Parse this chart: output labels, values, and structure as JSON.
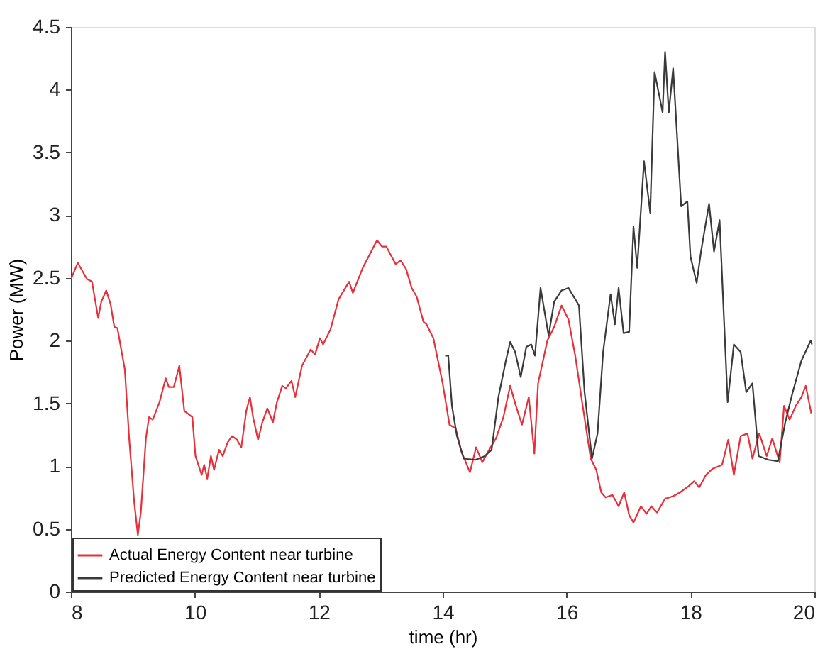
{
  "chart_data": {
    "type": "line",
    "xlabel": "time (hr)",
    "ylabel": "Power (MW)",
    "xlim": [
      8,
      20
    ],
    "xticks": [
      8,
      10,
      12,
      14,
      16,
      18,
      20
    ],
    "ylim": [
      0,
      4.5
    ],
    "yticks": [
      0,
      0.5,
      1,
      1.5,
      2,
      2.5,
      3,
      3.5,
      4,
      4.5
    ],
    "grid": false,
    "legend": "bottom left",
    "marker": "none",
    "line_style": "solid",
    "series": [
      {
        "name": "Actual Energy Content near turbine",
        "color": "#e8303a",
        "x": [
          8.0,
          8.11,
          8.26,
          8.34,
          8.44,
          8.49,
          8.57,
          8.64,
          8.7,
          8.75,
          8.87,
          8.94,
          9.02,
          9.08,
          9.13,
          9.21,
          9.26,
          9.32,
          9.43,
          9.53,
          9.58,
          9.66,
          9.75,
          9.83,
          9.91,
          9.96,
          10.01,
          10.11,
          10.15,
          10.2,
          10.26,
          10.31,
          10.39,
          10.45,
          10.53,
          10.6,
          10.68,
          10.75,
          10.83,
          10.89,
          10.94,
          11.02,
          11.09,
          11.17,
          11.26,
          11.32,
          11.41,
          11.47,
          11.56,
          11.62,
          11.73,
          11.87,
          11.94,
          12.02,
          12.07,
          12.19,
          12.32,
          12.49,
          12.55,
          12.71,
          12.94,
          13.02,
          13.09,
          13.24,
          13.32,
          13.41,
          13.5,
          13.58,
          13.69,
          13.74,
          13.85,
          14.0,
          14.11,
          14.21,
          14.3,
          14.44,
          14.54,
          14.64,
          14.75,
          14.86,
          14.98,
          15.09,
          15.17,
          15.28,
          15.39,
          15.48,
          15.54,
          15.69,
          15.8,
          15.92,
          16.03,
          16.14,
          16.26,
          16.39,
          16.48,
          16.56,
          16.63,
          16.74,
          16.84,
          16.93,
          17.01,
          17.08,
          17.2,
          17.29,
          17.37,
          17.46,
          17.59,
          17.72,
          17.83,
          17.97,
          18.06,
          18.14,
          18.25,
          18.36,
          18.51,
          18.61,
          18.7,
          18.81,
          18.92,
          19.0,
          19.11,
          19.23,
          19.32,
          19.44,
          19.51,
          19.6,
          19.7,
          19.79,
          19.86,
          19.95
        ],
        "values": [
          2.49,
          2.62,
          2.49,
          2.47,
          2.18,
          2.31,
          2.4,
          2.29,
          2.11,
          2.1,
          1.77,
          1.22,
          0.72,
          0.45,
          0.64,
          1.22,
          1.39,
          1.37,
          1.51,
          1.7,
          1.63,
          1.63,
          1.8,
          1.44,
          1.41,
          1.39,
          1.08,
          0.93,
          1.01,
          0.9,
          1.08,
          0.97,
          1.13,
          1.08,
          1.19,
          1.24,
          1.21,
          1.15,
          1.44,
          1.55,
          1.39,
          1.21,
          1.35,
          1.46,
          1.35,
          1.5,
          1.64,
          1.62,
          1.68,
          1.55,
          1.8,
          1.93,
          1.89,
          2.02,
          1.97,
          2.09,
          2.33,
          2.47,
          2.38,
          2.58,
          2.8,
          2.75,
          2.75,
          2.61,
          2.64,
          2.57,
          2.42,
          2.35,
          2.15,
          2.13,
          2.02,
          1.66,
          1.33,
          1.3,
          1.12,
          0.95,
          1.15,
          1.03,
          1.13,
          1.22,
          1.39,
          1.64,
          1.5,
          1.33,
          1.55,
          1.1,
          1.66,
          2.0,
          2.11,
          2.28,
          2.17,
          1.88,
          1.48,
          1.06,
          0.97,
          0.79,
          0.75,
          0.77,
          0.68,
          0.79,
          0.61,
          0.55,
          0.68,
          0.62,
          0.68,
          0.63,
          0.74,
          0.76,
          0.79,
          0.84,
          0.88,
          0.83,
          0.93,
          0.98,
          1.01,
          1.21,
          0.93,
          1.24,
          1.26,
          1.06,
          1.26,
          1.08,
          1.22,
          1.03,
          1.48,
          1.37,
          1.48,
          1.55,
          1.64,
          1.42
        ]
      },
      {
        "name": "Predicted Energy Content near turbine",
        "color": "#3a3a3a",
        "x": [
          14.04,
          14.09,
          14.15,
          14.23,
          14.34,
          14.53,
          14.68,
          14.79,
          14.9,
          15.02,
          15.09,
          15.17,
          15.26,
          15.35,
          15.43,
          15.49,
          15.58,
          15.71,
          15.8,
          15.92,
          16.03,
          16.14,
          16.2,
          16.29,
          16.41,
          16.5,
          16.59,
          16.71,
          16.78,
          16.84,
          16.92,
          17.01,
          17.08,
          17.14,
          17.25,
          17.35,
          17.42,
          17.55,
          17.59,
          17.65,
          17.72,
          17.85,
          17.95,
          18.0,
          18.1,
          18.17,
          18.3,
          18.38,
          18.47,
          18.6,
          18.7,
          18.81,
          18.9,
          19.0,
          19.1,
          19.26,
          19.41,
          19.53,
          19.64,
          19.79,
          19.94,
          19.96
        ],
        "values": [
          1.88,
          1.88,
          1.48,
          1.24,
          1.06,
          1.05,
          1.08,
          1.13,
          1.55,
          1.84,
          1.99,
          1.91,
          1.71,
          1.95,
          1.97,
          1.88,
          2.42,
          2.04,
          2.31,
          2.4,
          2.42,
          2.33,
          2.28,
          1.59,
          1.06,
          1.26,
          1.91,
          2.37,
          2.13,
          2.42,
          2.06,
          2.07,
          2.91,
          2.58,
          3.43,
          3.02,
          4.14,
          3.82,
          4.3,
          3.82,
          4.17,
          3.07,
          3.11,
          2.67,
          2.46,
          2.71,
          3.09,
          2.71,
          2.96,
          1.51,
          1.97,
          1.91,
          1.59,
          1.66,
          1.08,
          1.05,
          1.04,
          1.35,
          1.57,
          1.84,
          2.0,
          1.97
        ]
      }
    ]
  }
}
